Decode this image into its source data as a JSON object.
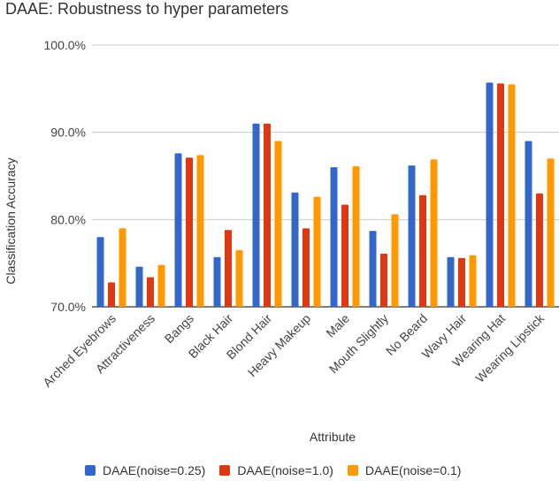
{
  "chart_data": {
    "type": "bar",
    "title": "DAAE: Robustness to hyper parameters",
    "xlabel": "Attribute",
    "ylabel": "Classification Accuracy",
    "ylim": [
      70,
      100
    ],
    "yticks": [
      "70.0%",
      "80.0%",
      "90.0%",
      "100.0%"
    ],
    "ytick_values": [
      70,
      80,
      90,
      100
    ],
    "grid": true,
    "legend_position": "bottom",
    "categories": [
      "Arched Eyebrows",
      "Attractiveness",
      "Bangs",
      "Black Hair",
      "Blond Hair",
      "Heavy Makeup",
      "Male",
      "Mouth Slightly",
      "No Beard",
      "Wavy Hair",
      "Wearing Hat",
      "Wearing Lipstick"
    ],
    "series": [
      {
        "name": "DAAE(noise=0.25)",
        "color": "#3366cc",
        "values": [
          78.0,
          74.6,
          87.6,
          75.7,
          91.0,
          83.1,
          86.0,
          78.7,
          86.2,
          75.7,
          95.7,
          89.0
        ]
      },
      {
        "name": "DAAE(noise=1.0)",
        "color": "#dc3912",
        "values": [
          72.8,
          73.4,
          87.1,
          78.8,
          91.0,
          79.0,
          81.7,
          76.1,
          82.8,
          75.6,
          95.6,
          83.0
        ]
      },
      {
        "name": "DAAE(noise=0.1)",
        "color": "#ff9900",
        "values": [
          79.0,
          74.8,
          87.4,
          76.5,
          89.0,
          82.6,
          86.1,
          80.6,
          86.9,
          75.9,
          95.5,
          87.0
        ]
      }
    ]
  }
}
